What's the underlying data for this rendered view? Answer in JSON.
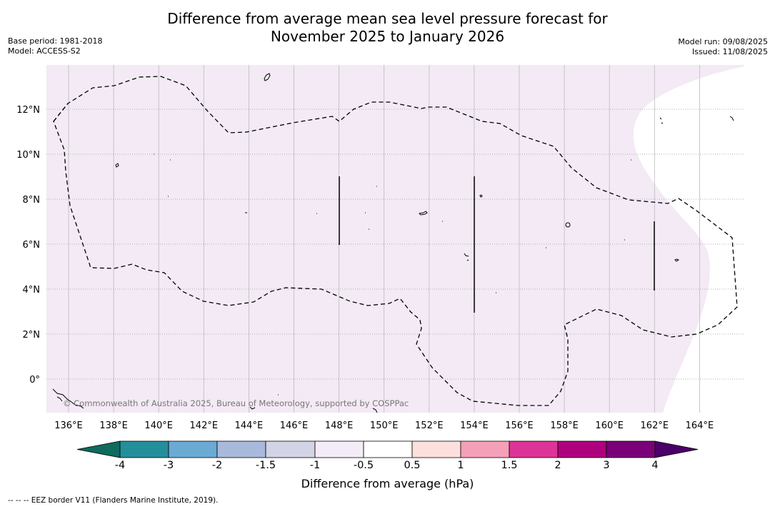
{
  "header": {
    "title_line1": "Difference from average mean sea level pressure forecast for",
    "title_line2": "November 2025 to January 2026",
    "base_period": "Base period: 1981-2018",
    "model": "Model: ACCESS-S2",
    "model_run": "Model run: 09/08/2025",
    "issued": "Issued: 11/08/2025"
  },
  "map": {
    "lon_ticks": [
      "136°E",
      "138°E",
      "140°E",
      "142°E",
      "144°E",
      "146°E",
      "148°E",
      "150°E",
      "152°E",
      "154°E",
      "156°E",
      "158°E",
      "160°E",
      "162°E",
      "164°E"
    ],
    "lat_ticks": [
      "12°N",
      "10°N",
      "8°N",
      "6°N",
      "4°N",
      "2°N",
      "0°"
    ],
    "shading_color": "#f3eaf5",
    "copyright": "© Commonwealth of Australia 2025, Bureau of Meteorology, supported by COSPPac",
    "line_style": "dashed EEZ border"
  },
  "colorbar": {
    "title": "Difference from average (hPa)",
    "labels": [
      "-4",
      "-3",
      "-2",
      "-1.5",
      "-1",
      "-0.5",
      "0.5",
      "1",
      "1.5",
      "2",
      "3",
      "4"
    ],
    "colors": [
      "#0e6b5e",
      "#238f9a",
      "#6aaad3",
      "#a8b9db",
      "#d3d3e6",
      "#f4ecf6",
      "#ffffff",
      "#fde0dd",
      "#f69fb8",
      "#dd3497",
      "#ae017e",
      "#7a0177",
      "#4a0068"
    ]
  },
  "footnote": "--  --  -- EEZ border V11 (Flanders Marine Institute, 2019)."
}
